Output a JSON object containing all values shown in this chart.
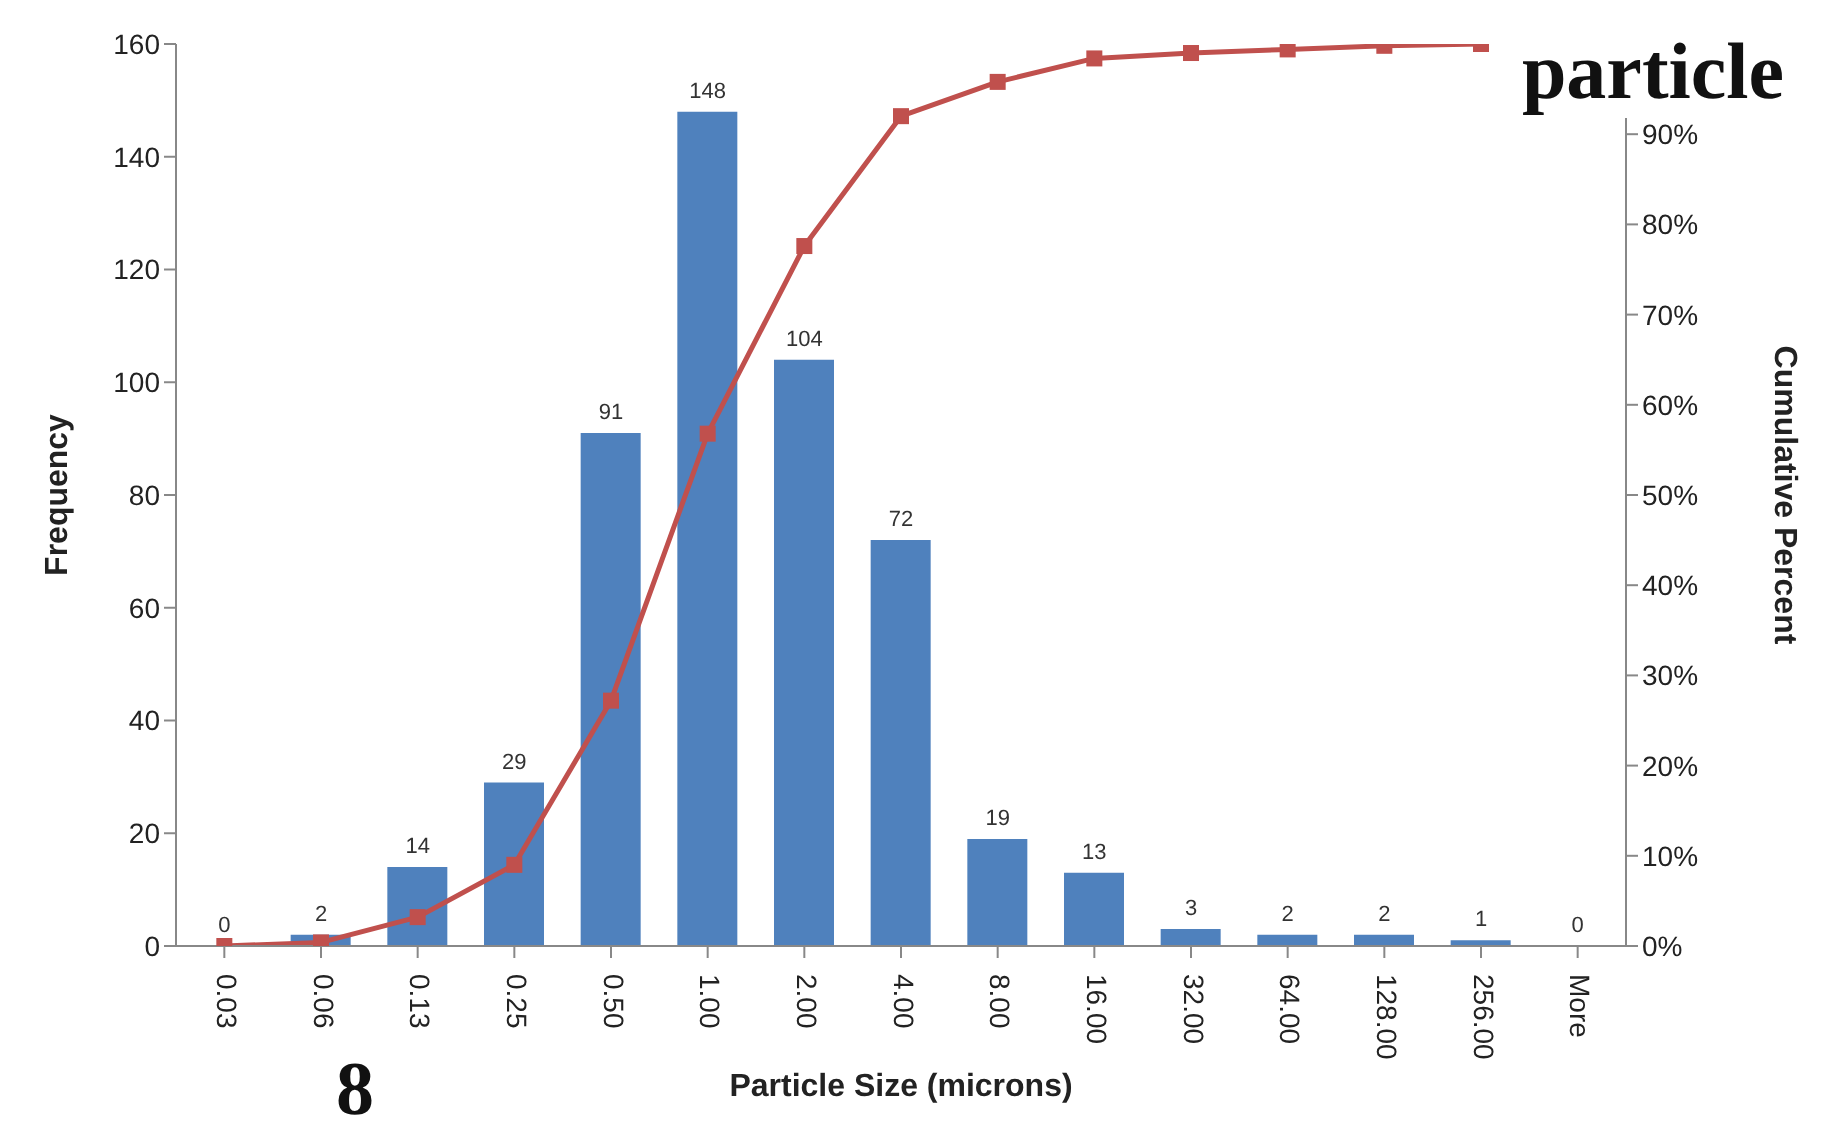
{
  "chart_data": {
    "type": "bar",
    "xlabel": "Particle Size (microns)",
    "ylabel": "Frequency",
    "y2label": "Cumulative Percent",
    "categories": [
      "0.03",
      "0.06",
      "0.13",
      "0.25",
      "0.50",
      "1.00",
      "2.00",
      "4.00",
      "8.00",
      "16.00",
      "32.00",
      "64.00",
      "128.00",
      "256.00",
      "More"
    ],
    "series": [
      {
        "color": "#4f81bd",
        "values": [
          0,
          2,
          14,
          29,
          91,
          148,
          104,
          72,
          19,
          13,
          3,
          2,
          2,
          1,
          0
        ],
        "data_labels": true
      },
      {
        "type": "line",
        "axis": "y2",
        "color": "#c0504d",
        "marker": "square",
        "values": [
          0,
          0.4,
          3.2,
          9.0,
          27.2,
          56.8,
          77.6,
          92.0,
          95.8,
          98.4,
          99.0,
          99.4,
          99.8,
          100,
          null
        ]
      }
    ],
    "ylim": [
      0,
      160
    ],
    "yticks": [
      0,
      20,
      40,
      60,
      80,
      100,
      120,
      140,
      160
    ],
    "y2lim": [
      0,
      100
    ],
    "y2ticks": [
      {
        "value": 0,
        "label": "0%"
      },
      {
        "value": 10,
        "label": "10%"
      },
      {
        "value": 20,
        "label": "20%"
      },
      {
        "value": 30,
        "label": "30%"
      },
      {
        "value": 40,
        "label": "40%"
      },
      {
        "value": 50,
        "label": "50%"
      },
      {
        "value": 60,
        "label": "60%"
      },
      {
        "value": 70,
        "label": "70%"
      },
      {
        "value": 80,
        "label": "80%"
      },
      {
        "value": 90,
        "label": "90%"
      },
      {
        "value": 100,
        "label": null
      }
    ],
    "grid": false,
    "legend": false,
    "annotations": [
      "particle",
      "8"
    ]
  }
}
